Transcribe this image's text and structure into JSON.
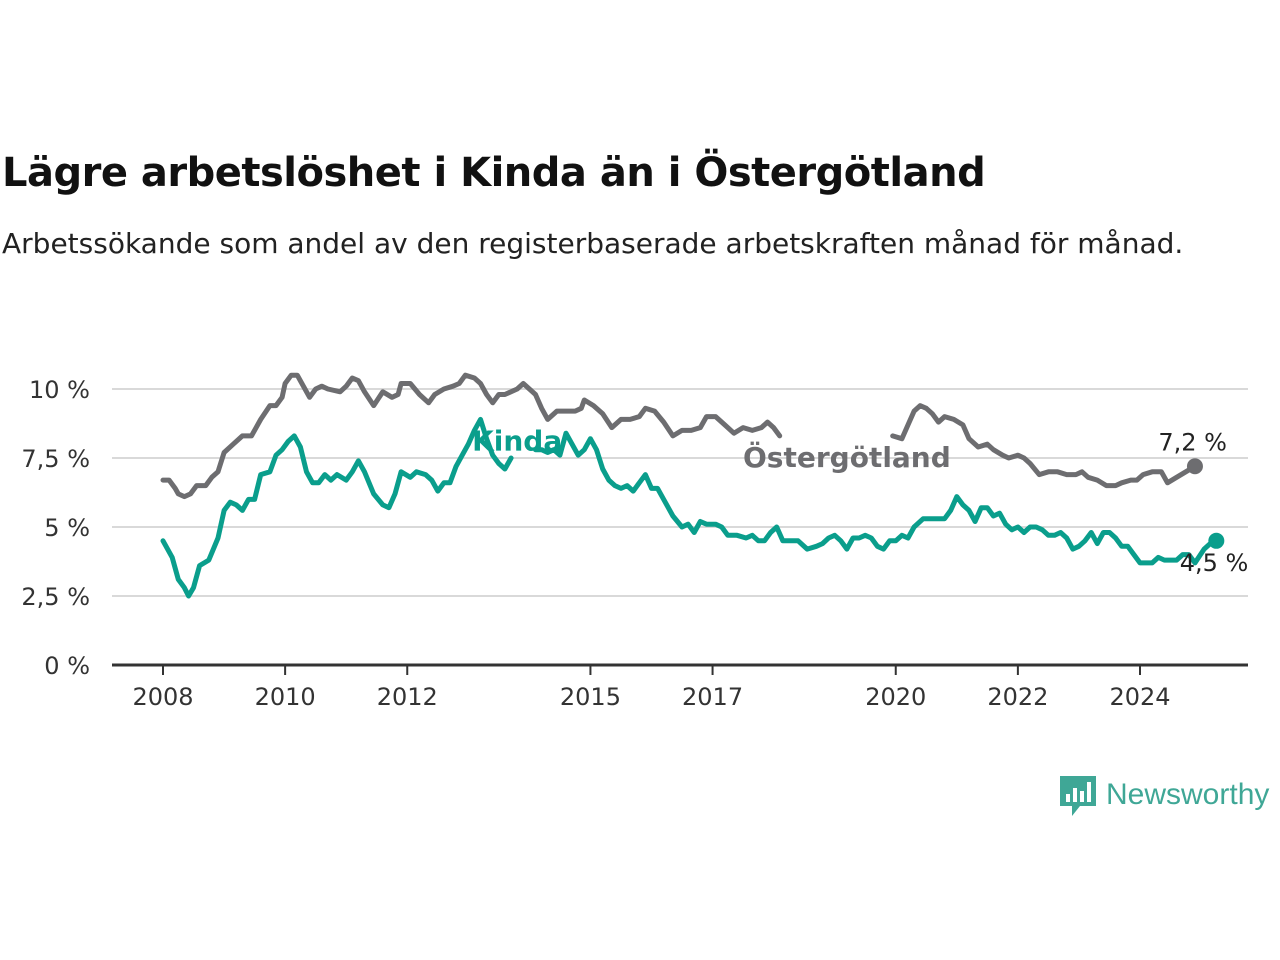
{
  "header": {
    "title": "Lägre arbetslöshet i Kinda än i Östergötland",
    "subtitle": "Arbetssökande som andel av den registerbaserade arbetskraften månad för månad."
  },
  "brand": {
    "name": "Newsworthy",
    "icon": "newsworthy-logo-icon",
    "color": "#3fa796"
  },
  "colors": {
    "kinda": "#0a9e8c",
    "ostergotland": "#6d6d70",
    "grid": "#d9d9d9",
    "axis": "#333333"
  },
  "chart_data": {
    "type": "line",
    "ylim": [
      0,
      10.5
    ],
    "xlim": [
      2008,
      2025.5
    ],
    "y_ticks": [
      {
        "value": 0,
        "label": "0 %"
      },
      {
        "value": 2.5,
        "label": "2,5 %"
      },
      {
        "value": 5,
        "label": "5 %"
      },
      {
        "value": 7.5,
        "label": "7,5 %"
      },
      {
        "value": 10,
        "label": "10 %"
      }
    ],
    "x_ticks": [
      {
        "value": 2008,
        "label": "2008"
      },
      {
        "value": 2010,
        "label": "2010"
      },
      {
        "value": 2012,
        "label": "2012"
      },
      {
        "value": 2015,
        "label": "2015"
      },
      {
        "value": 2017,
        "label": "2017"
      },
      {
        "value": 2020,
        "label": "2020"
      },
      {
        "value": 2022,
        "label": "2022"
      },
      {
        "value": 2024,
        "label": "2024"
      }
    ],
    "grid": true,
    "series": [
      {
        "name": "Östergötland",
        "color": "#6d6d70",
        "end_label": "7,2 %",
        "points": [
          [
            2008.0,
            6.7
          ],
          [
            2008.1,
            6.7
          ],
          [
            2008.2,
            6.4
          ],
          [
            2008.25,
            6.2
          ],
          [
            2008.35,
            6.1
          ],
          [
            2008.45,
            6.2
          ],
          [
            2008.55,
            6.5
          ],
          [
            2008.7,
            6.5
          ],
          [
            2008.8,
            6.8
          ],
          [
            2008.9,
            7.0
          ],
          [
            2009.0,
            7.7
          ],
          [
            2009.15,
            8.0
          ],
          [
            2009.3,
            8.3
          ],
          [
            2009.45,
            8.3
          ],
          [
            2009.6,
            8.9
          ],
          [
            2009.75,
            9.4
          ],
          [
            2009.85,
            9.4
          ],
          [
            2009.95,
            9.7
          ],
          [
            2010.0,
            10.2
          ],
          [
            2010.1,
            10.5
          ],
          [
            2010.2,
            10.5
          ],
          [
            2010.3,
            10.1
          ],
          [
            2010.4,
            9.7
          ],
          [
            2010.5,
            10.0
          ],
          [
            2010.6,
            10.1
          ],
          [
            2010.7,
            10.0
          ],
          [
            2010.9,
            9.9
          ],
          [
            2011.0,
            10.1
          ],
          [
            2011.1,
            10.4
          ],
          [
            2011.2,
            10.3
          ],
          [
            2011.3,
            9.9
          ],
          [
            2011.45,
            9.4
          ],
          [
            2011.6,
            9.9
          ],
          [
            2011.75,
            9.7
          ],
          [
            2011.85,
            9.8
          ],
          [
            2011.9,
            10.2
          ],
          [
            2012.05,
            10.2
          ],
          [
            2012.2,
            9.8
          ],
          [
            2012.35,
            9.5
          ],
          [
            2012.45,
            9.8
          ],
          [
            2012.6,
            10.0
          ],
          [
            2012.75,
            10.1
          ],
          [
            2012.85,
            10.2
          ],
          [
            2012.95,
            10.5
          ],
          [
            2013.1,
            10.4
          ],
          [
            2013.2,
            10.2
          ],
          [
            2013.3,
            9.8
          ],
          [
            2013.4,
            9.5
          ],
          [
            2013.5,
            9.8
          ],
          [
            2013.6,
            9.8
          ],
          [
            2013.8,
            10.0
          ],
          [
            2013.9,
            10.2
          ],
          [
            2014.0,
            10.0
          ],
          [
            2014.1,
            9.8
          ],
          [
            2014.2,
            9.3
          ],
          [
            2014.3,
            8.9
          ],
          [
            2014.45,
            9.2
          ],
          [
            2014.6,
            9.2
          ],
          [
            2014.75,
            9.2
          ],
          [
            2014.85,
            9.3
          ],
          [
            2014.9,
            9.6
          ],
          [
            2015.05,
            9.4
          ],
          [
            2015.2,
            9.1
          ],
          [
            2015.35,
            8.6
          ],
          [
            2015.5,
            8.9
          ],
          [
            2015.65,
            8.9
          ],
          [
            2015.8,
            9.0
          ],
          [
            2015.9,
            9.3
          ],
          [
            2016.05,
            9.2
          ],
          [
            2016.2,
            8.8
          ],
          [
            2016.35,
            8.3
          ],
          [
            2016.5,
            8.5
          ],
          [
            2016.65,
            8.5
          ],
          [
            2016.8,
            8.6
          ],
          [
            2016.9,
            9.0
          ],
          [
            2017.05,
            9.0
          ],
          [
            2017.2,
            8.7
          ],
          [
            2017.35,
            8.4
          ],
          [
            2017.5,
            8.6
          ],
          [
            2017.65,
            8.5
          ],
          [
            2017.8,
            8.6
          ],
          [
            2017.9,
            8.8
          ],
          [
            2018.0,
            8.6
          ],
          [
            2018.1,
            8.3
          ],
          [
            2019.95,
            8.3
          ],
          [
            2020.1,
            8.2
          ],
          [
            2020.2,
            8.7
          ],
          [
            2020.3,
            9.2
          ],
          [
            2020.4,
            9.4
          ],
          [
            2020.5,
            9.3
          ],
          [
            2020.6,
            9.1
          ],
          [
            2020.7,
            8.8
          ],
          [
            2020.8,
            9.0
          ],
          [
            2020.95,
            8.9
          ],
          [
            2021.1,
            8.7
          ],
          [
            2021.2,
            8.2
          ],
          [
            2021.35,
            7.9
          ],
          [
            2021.5,
            8.0
          ],
          [
            2021.6,
            7.8
          ],
          [
            2021.75,
            7.6
          ],
          [
            2021.85,
            7.5
          ],
          [
            2022.0,
            7.6
          ],
          [
            2022.1,
            7.5
          ],
          [
            2022.2,
            7.3
          ],
          [
            2022.35,
            6.9
          ],
          [
            2022.5,
            7.0
          ],
          [
            2022.65,
            7.0
          ],
          [
            2022.8,
            6.9
          ],
          [
            2022.95,
            6.9
          ],
          [
            2023.05,
            7.0
          ],
          [
            2023.15,
            6.8
          ],
          [
            2023.3,
            6.7
          ],
          [
            2023.45,
            6.5
          ],
          [
            2023.6,
            6.5
          ],
          [
            2023.7,
            6.6
          ],
          [
            2023.85,
            6.7
          ],
          [
            2023.95,
            6.7
          ],
          [
            2024.05,
            6.9
          ],
          [
            2024.2,
            7.0
          ],
          [
            2024.35,
            7.0
          ],
          [
            2024.45,
            6.6
          ],
          [
            2024.6,
            6.8
          ],
          [
            2024.75,
            7.0
          ],
          [
            2024.9,
            7.2
          ]
        ]
      },
      {
        "name": "Kinda",
        "color": "#0a9e8c",
        "end_label": "4,5 %",
        "points": [
          [
            2008.0,
            4.5
          ],
          [
            2008.15,
            3.9
          ],
          [
            2008.25,
            3.1
          ],
          [
            2008.35,
            2.8
          ],
          [
            2008.42,
            2.5
          ],
          [
            2008.5,
            2.8
          ],
          [
            2008.6,
            3.6
          ],
          [
            2008.75,
            3.8
          ],
          [
            2008.9,
            4.6
          ],
          [
            2009.0,
            5.6
          ],
          [
            2009.1,
            5.9
          ],
          [
            2009.2,
            5.8
          ],
          [
            2009.3,
            5.6
          ],
          [
            2009.4,
            6.0
          ],
          [
            2009.5,
            6.0
          ],
          [
            2009.6,
            6.9
          ],
          [
            2009.75,
            7.0
          ],
          [
            2009.85,
            7.6
          ],
          [
            2009.95,
            7.8
          ],
          [
            2010.05,
            8.1
          ],
          [
            2010.15,
            8.3
          ],
          [
            2010.25,
            7.9
          ],
          [
            2010.35,
            7.0
          ],
          [
            2010.45,
            6.6
          ],
          [
            2010.55,
            6.6
          ],
          [
            2010.65,
            6.9
          ],
          [
            2010.75,
            6.7
          ],
          [
            2010.85,
            6.9
          ],
          [
            2011.0,
            6.7
          ],
          [
            2011.1,
            7.0
          ],
          [
            2011.2,
            7.4
          ],
          [
            2011.3,
            7.0
          ],
          [
            2011.45,
            6.2
          ],
          [
            2011.6,
            5.8
          ],
          [
            2011.7,
            5.7
          ],
          [
            2011.8,
            6.2
          ],
          [
            2011.9,
            7.0
          ],
          [
            2012.05,
            6.8
          ],
          [
            2012.15,
            7.0
          ],
          [
            2012.3,
            6.9
          ],
          [
            2012.4,
            6.7
          ],
          [
            2012.5,
            6.3
          ],
          [
            2012.6,
            6.6
          ],
          [
            2012.7,
            6.6
          ],
          [
            2012.8,
            7.2
          ],
          [
            2012.9,
            7.6
          ],
          [
            2013.0,
            8.0
          ],
          [
            2013.1,
            8.5
          ],
          [
            2013.2,
            8.9
          ],
          [
            2013.3,
            8.2
          ],
          [
            2013.4,
            7.6
          ],
          [
            2013.5,
            7.3
          ],
          [
            2013.6,
            7.1
          ],
          [
            2013.7,
            7.5
          ],
          [
            2014.1,
            7.8
          ],
          [
            2014.2,
            7.8
          ],
          [
            2014.3,
            7.7
          ],
          [
            2014.4,
            7.8
          ],
          [
            2014.5,
            7.6
          ],
          [
            2014.6,
            8.4
          ],
          [
            2014.7,
            8.0
          ],
          [
            2014.8,
            7.6
          ],
          [
            2014.9,
            7.8
          ],
          [
            2015.0,
            8.2
          ],
          [
            2015.1,
            7.8
          ],
          [
            2015.2,
            7.1
          ],
          [
            2015.3,
            6.7
          ],
          [
            2015.4,
            6.5
          ],
          [
            2015.5,
            6.4
          ],
          [
            2015.6,
            6.5
          ],
          [
            2015.7,
            6.3
          ],
          [
            2015.8,
            6.6
          ],
          [
            2015.9,
            6.9
          ],
          [
            2016.0,
            6.4
          ],
          [
            2016.1,
            6.4
          ],
          [
            2016.2,
            6.0
          ],
          [
            2016.35,
            5.4
          ],
          [
            2016.5,
            5.0
          ],
          [
            2016.6,
            5.1
          ],
          [
            2016.7,
            4.8
          ],
          [
            2016.8,
            5.2
          ],
          [
            2016.9,
            5.1
          ],
          [
            2017.05,
            5.1
          ],
          [
            2017.15,
            5.0
          ],
          [
            2017.25,
            4.7
          ],
          [
            2017.4,
            4.7
          ],
          [
            2017.55,
            4.6
          ],
          [
            2017.65,
            4.7
          ],
          [
            2017.75,
            4.5
          ],
          [
            2017.85,
            4.5
          ],
          [
            2017.95,
            4.8
          ],
          [
            2018.05,
            5.0
          ],
          [
            2018.15,
            4.5
          ],
          [
            2018.3,
            4.5
          ],
          [
            2018.4,
            4.5
          ],
          [
            2018.55,
            4.2
          ],
          [
            2018.7,
            4.3
          ],
          [
            2018.8,
            4.4
          ],
          [
            2018.9,
            4.6
          ],
          [
            2019.0,
            4.7
          ],
          [
            2019.1,
            4.5
          ],
          [
            2019.2,
            4.2
          ],
          [
            2019.3,
            4.6
          ],
          [
            2019.4,
            4.6
          ],
          [
            2019.5,
            4.7
          ],
          [
            2019.6,
            4.6
          ],
          [
            2019.7,
            4.3
          ],
          [
            2019.8,
            4.2
          ],
          [
            2019.9,
            4.5
          ],
          [
            2020.0,
            4.5
          ],
          [
            2020.1,
            4.7
          ],
          [
            2020.2,
            4.6
          ],
          [
            2020.3,
            5.0
          ],
          [
            2020.45,
            5.3
          ],
          [
            2020.55,
            5.3
          ],
          [
            2020.7,
            5.3
          ],
          [
            2020.8,
            5.3
          ],
          [
            2020.9,
            5.6
          ],
          [
            2021.0,
            6.1
          ],
          [
            2021.1,
            5.8
          ],
          [
            2021.2,
            5.6
          ],
          [
            2021.3,
            5.2
          ],
          [
            2021.4,
            5.7
          ],
          [
            2021.5,
            5.7
          ],
          [
            2021.6,
            5.4
          ],
          [
            2021.7,
            5.5
          ],
          [
            2021.8,
            5.1
          ],
          [
            2021.9,
            4.9
          ],
          [
            2022.0,
            5.0
          ],
          [
            2022.1,
            4.8
          ],
          [
            2022.2,
            5.0
          ],
          [
            2022.3,
            5.0
          ],
          [
            2022.4,
            4.9
          ],
          [
            2022.5,
            4.7
          ],
          [
            2022.6,
            4.7
          ],
          [
            2022.7,
            4.8
          ],
          [
            2022.8,
            4.6
          ],
          [
            2022.9,
            4.2
          ],
          [
            2023.0,
            4.3
          ],
          [
            2023.1,
            4.5
          ],
          [
            2023.2,
            4.8
          ],
          [
            2023.3,
            4.4
          ],
          [
            2023.4,
            4.8
          ],
          [
            2023.5,
            4.8
          ],
          [
            2023.6,
            4.6
          ],
          [
            2023.7,
            4.3
          ],
          [
            2023.8,
            4.3
          ],
          [
            2023.9,
            4.0
          ],
          [
            2024.0,
            3.7
          ],
          [
            2024.1,
            3.7
          ],
          [
            2024.2,
            3.7
          ],
          [
            2024.3,
            3.9
          ],
          [
            2024.4,
            3.8
          ],
          [
            2024.6,
            3.8
          ],
          [
            2024.7,
            4.0
          ],
          [
            2024.8,
            4.0
          ],
          [
            2024.9,
            3.7
          ],
          [
            2025.05,
            4.2
          ],
          [
            2025.15,
            4.4
          ],
          [
            2025.25,
            4.5
          ]
        ]
      }
    ],
    "annotations": [
      {
        "text": "Kinda",
        "series": "Kinda",
        "x": 2013.8,
        "y": 8.1
      },
      {
        "text": "Östergötland",
        "series": "Östergötland",
        "x": 2019.2,
        "y": 7.5
      }
    ]
  }
}
